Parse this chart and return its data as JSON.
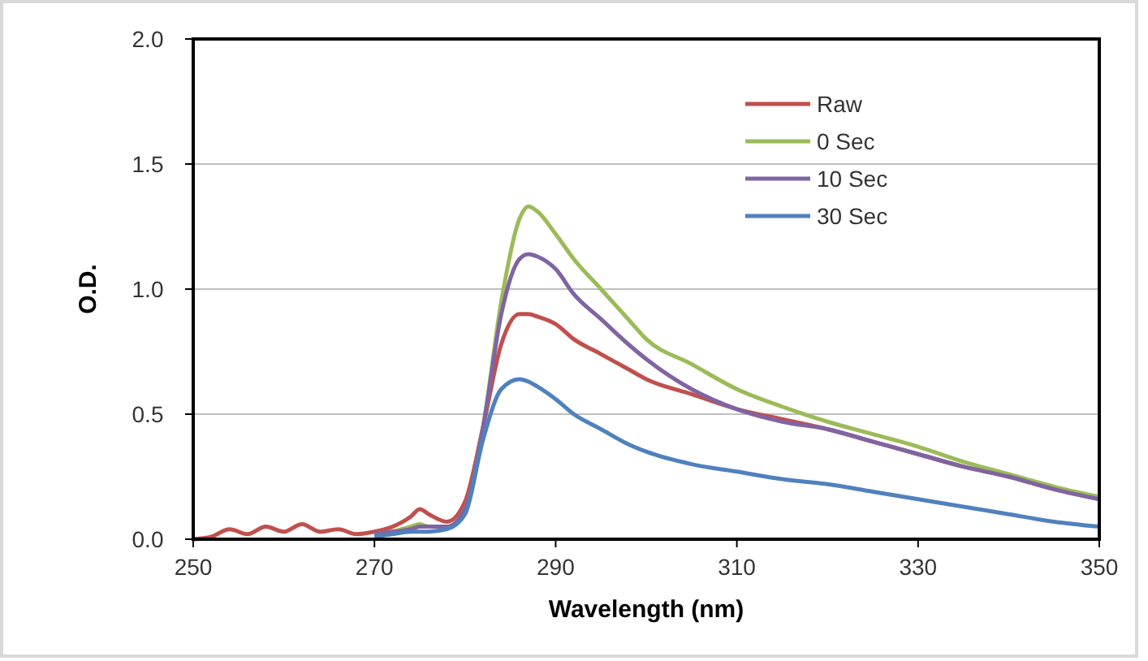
{
  "chart_data": {
    "type": "line",
    "xlabel": "Wavelength  (nm)",
    "ylabel": "O.D.",
    "x": [
      250,
      252,
      254,
      256,
      258,
      260,
      262,
      264,
      266,
      268,
      270,
      272,
      274,
      275,
      276,
      278,
      280,
      282,
      284,
      286,
      287,
      288,
      290,
      292,
      295,
      298,
      300,
      305,
      310,
      315,
      320,
      325,
      330,
      335,
      340,
      345,
      350
    ],
    "series": [
      {
        "name": "Raw",
        "color": "#c0504d",
        "values": [
          0,
          0.01,
          0.04,
          0.02,
          0.05,
          0.03,
          0.06,
          0.03,
          0.04,
          0.02,
          0.03,
          0.05,
          0.09,
          0.12,
          0.1,
          0.07,
          0.15,
          0.45,
          0.78,
          0.9,
          0.9,
          0.89,
          0.86,
          0.8,
          0.74,
          0.68,
          0.64,
          0.58,
          0.52,
          0.48,
          0.44,
          0.39,
          0.34,
          0.29,
          0.25,
          0.2,
          0.16
        ]
      },
      {
        "name": "0 Sec",
        "color": "#9bbb59",
        "values": [
          null,
          null,
          null,
          null,
          null,
          null,
          null,
          null,
          null,
          null,
          0.02,
          0.03,
          0.05,
          0.06,
          0.05,
          0.05,
          0.12,
          0.45,
          0.95,
          1.28,
          1.33,
          1.31,
          1.22,
          1.12,
          1.0,
          0.88,
          0.8,
          0.7,
          0.6,
          0.53,
          0.47,
          0.42,
          0.37,
          0.31,
          0.26,
          0.21,
          0.17
        ]
      },
      {
        "name": "10 Sec",
        "color": "#8064a2",
        "values": [
          null,
          null,
          null,
          null,
          null,
          null,
          null,
          null,
          null,
          null,
          0.02,
          0.03,
          0.04,
          0.05,
          0.05,
          0.05,
          0.12,
          0.45,
          0.9,
          1.12,
          1.14,
          1.13,
          1.08,
          0.98,
          0.88,
          0.78,
          0.72,
          0.6,
          0.52,
          0.47,
          0.44,
          0.39,
          0.34,
          0.29,
          0.25,
          0.2,
          0.16
        ]
      },
      {
        "name": "30 Sec",
        "color": "#4f81bd",
        "values": [
          null,
          null,
          null,
          null,
          null,
          null,
          null,
          null,
          null,
          null,
          0.01,
          0.02,
          0.03,
          0.03,
          0.03,
          0.04,
          0.1,
          0.4,
          0.6,
          0.64,
          0.63,
          0.61,
          0.56,
          0.5,
          0.44,
          0.38,
          0.35,
          0.3,
          0.27,
          0.24,
          0.22,
          0.19,
          0.16,
          0.13,
          0.1,
          0.07,
          0.05
        ]
      }
    ],
    "xlim": [
      250,
      350
    ],
    "xticks": [
      250,
      270,
      290,
      310,
      330,
      350
    ],
    "ylim": [
      0,
      2
    ],
    "yticks": [
      {
        "value": 0,
        "label": "0.0"
      },
      {
        "value": 0.5,
        "label": "0.5"
      },
      {
        "value": 1,
        "label": "1.0"
      },
      {
        "value": 1.5,
        "label": "1.5"
      },
      {
        "value": 2,
        "label": "2.0"
      }
    ],
    "grid": "y",
    "legend": "top right",
    "marker": "none",
    "line_style": "solid"
  }
}
